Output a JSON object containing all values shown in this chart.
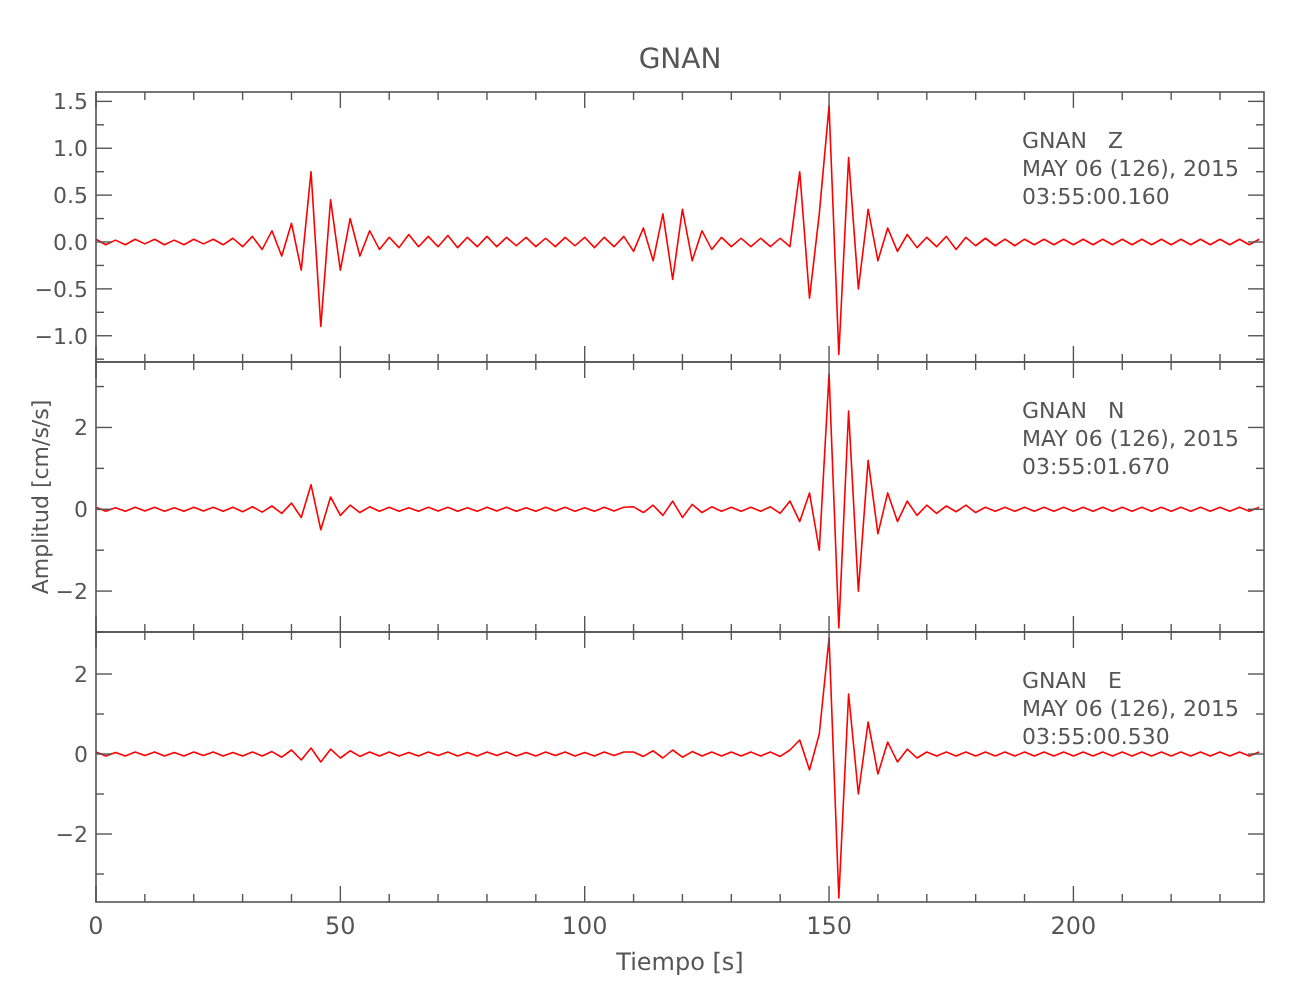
{
  "chart_data": [
    {
      "type": "line",
      "title": "GNAN",
      "xlim": [
        0,
        239
      ],
      "ylim": [
        -1.28,
        1.6
      ],
      "tick_labels": "y",
      "xticks": [
        {
          "value": 0,
          "label": null
        },
        {
          "value": 10,
          "label": null
        },
        {
          "value": 20,
          "label": null
        },
        {
          "value": 30,
          "label": null
        },
        {
          "value": 40,
          "label": null
        },
        {
          "value": 50,
          "label": null
        },
        {
          "value": 60,
          "label": null
        },
        {
          "value": 70,
          "label": null
        },
        {
          "value": 80,
          "label": null
        },
        {
          "value": 90,
          "label": null
        },
        {
          "value": 100,
          "label": null
        },
        {
          "value": 110,
          "label": null
        },
        {
          "value": 120,
          "label": null
        },
        {
          "value": 130,
          "label": null
        },
        {
          "value": 140,
          "label": null
        },
        {
          "value": 150,
          "label": null
        },
        {
          "value": 160,
          "label": null
        },
        {
          "value": 170,
          "label": null
        },
        {
          "value": 180,
          "label": null
        },
        {
          "value": 190,
          "label": null
        },
        {
          "value": 200,
          "label": null
        },
        {
          "value": 210,
          "label": null
        },
        {
          "value": 220,
          "label": null
        },
        {
          "value": 230,
          "label": null
        }
      ],
      "yticks": [
        {
          "value": -1.25,
          "label": null
        },
        {
          "value": -1,
          "label": "−1.0"
        },
        {
          "value": -0.75,
          "label": null
        },
        {
          "value": -0.5,
          "label": "−0.5"
        },
        {
          "value": -0.25,
          "label": null
        },
        {
          "value": 0,
          "label": "0.0"
        },
        {
          "value": 0.25,
          "label": null
        },
        {
          "value": 0.5,
          "label": "0.5"
        },
        {
          "value": 0.75,
          "label": null
        },
        {
          "value": 1,
          "label": "1.0"
        },
        {
          "value": 1.25,
          "label": null
        },
        {
          "value": 1.5,
          "label": "1.5"
        }
      ],
      "annotations": [
        "GNAN   Z",
        "MAY 06 (126), 2015",
        "03:55:00.160"
      ],
      "series": [
        {
          "color": "#ff0000",
          "x": [
            0,
            2,
            4,
            6,
            8,
            10,
            12,
            14,
            16,
            18,
            20,
            22,
            24,
            26,
            28,
            30,
            32,
            34,
            36,
            38,
            40,
            42,
            44,
            46,
            48,
            50,
            52,
            54,
            56,
            58,
            60,
            62,
            64,
            66,
            68,
            70,
            72,
            74,
            76,
            78,
            80,
            82,
            84,
            86,
            88,
            90,
            92,
            94,
            96,
            98,
            100,
            102,
            104,
            106,
            108,
            110,
            112,
            114,
            116,
            118,
            120,
            122,
            124,
            126,
            128,
            130,
            132,
            134,
            136,
            138,
            140,
            142,
            144,
            146,
            148,
            150,
            152,
            154,
            156,
            158,
            160,
            162,
            164,
            166,
            168,
            170,
            172,
            174,
            176,
            178,
            180,
            182,
            184,
            186,
            188,
            190,
            192,
            194,
            196,
            198,
            200,
            202,
            204,
            206,
            208,
            210,
            212,
            214,
            216,
            218,
            220,
            222,
            224,
            226,
            228,
            230,
            232,
            234,
            236,
            238
          ],
          "values": [
            0.03,
            -0.03,
            0.02,
            -0.03,
            0.03,
            -0.02,
            0.03,
            -0.03,
            0.02,
            -0.03,
            0.03,
            -0.02,
            0.03,
            -0.03,
            0.04,
            -0.05,
            0.06,
            -0.08,
            0.12,
            -0.15,
            0.2,
            -0.3,
            0.75,
            -0.9,
            0.45,
            -0.3,
            0.25,
            -0.15,
            0.12,
            -0.08,
            0.05,
            -0.06,
            0.08,
            -0.05,
            0.06,
            -0.05,
            0.07,
            -0.06,
            0.05,
            -0.05,
            0.06,
            -0.05,
            0.05,
            -0.04,
            0.05,
            -0.05,
            0.04,
            -0.05,
            0.05,
            -0.04,
            0.05,
            -0.06,
            0.05,
            -0.05,
            0.06,
            -0.1,
            0.15,
            -0.2,
            0.3,
            -0.4,
            0.35,
            -0.2,
            0.12,
            -0.08,
            0.05,
            -0.05,
            0.04,
            -0.05,
            0.04,
            -0.05,
            0.04,
            -0.05,
            0.75,
            -0.6,
            0.3,
            1.45,
            -1.2,
            0.9,
            -0.5,
            0.35,
            -0.2,
            0.15,
            -0.1,
            0.08,
            -0.06,
            0.05,
            -0.05,
            0.06,
            -0.08,
            0.05,
            -0.04,
            0.04,
            -0.04,
            0.03,
            -0.04,
            0.03,
            -0.03,
            0.03,
            -0.03,
            0.03,
            -0.03,
            0.03,
            -0.03,
            0.03,
            -0.03,
            0.03,
            -0.03,
            0.03,
            -0.03,
            0.03,
            -0.03,
            0.03,
            -0.03,
            0.03,
            -0.03,
            0.03,
            -0.03,
            0.03,
            -0.03,
            0.03
          ]
        }
      ]
    },
    {
      "type": "line",
      "ylabel": "Amplitud [cm/s/s]",
      "xlim": [
        0,
        239
      ],
      "ylim": [
        -3,
        3.6
      ],
      "tick_labels": "y",
      "xticks": [
        {
          "value": 0,
          "label": null
        },
        {
          "value": 10,
          "label": null
        },
        {
          "value": 20,
          "label": null
        },
        {
          "value": 30,
          "label": null
        },
        {
          "value": 40,
          "label": null
        },
        {
          "value": 50,
          "label": null
        },
        {
          "value": 60,
          "label": null
        },
        {
          "value": 70,
          "label": null
        },
        {
          "value": 80,
          "label": null
        },
        {
          "value": 90,
          "label": null
        },
        {
          "value": 100,
          "label": null
        },
        {
          "value": 110,
          "label": null
        },
        {
          "value": 120,
          "label": null
        },
        {
          "value": 130,
          "label": null
        },
        {
          "value": 140,
          "label": null
        },
        {
          "value": 150,
          "label": null
        },
        {
          "value": 160,
          "label": null
        },
        {
          "value": 170,
          "label": null
        },
        {
          "value": 180,
          "label": null
        },
        {
          "value": 190,
          "label": null
        },
        {
          "value": 200,
          "label": null
        },
        {
          "value": 210,
          "label": null
        },
        {
          "value": 220,
          "label": null
        },
        {
          "value": 230,
          "label": null
        }
      ],
      "yticks": [
        {
          "value": -3,
          "label": null
        },
        {
          "value": -2,
          "label": "−2"
        },
        {
          "value": -1,
          "label": null
        },
        {
          "value": 0,
          "label": "0"
        },
        {
          "value": 1,
          "label": null
        },
        {
          "value": 2,
          "label": "2"
        },
        {
          "value": 3,
          "label": null
        }
      ],
      "annotations": [
        "GNAN   N",
        "MAY 06 (126), 2015",
        "03:55:01.670"
      ],
      "series": [
        {
          "color": "#ff0000",
          "x": [
            0,
            2,
            4,
            6,
            8,
            10,
            12,
            14,
            16,
            18,
            20,
            22,
            24,
            26,
            28,
            30,
            32,
            34,
            36,
            38,
            40,
            42,
            44,
            46,
            48,
            50,
            52,
            54,
            56,
            58,
            60,
            62,
            64,
            66,
            68,
            70,
            72,
            74,
            76,
            78,
            80,
            82,
            84,
            86,
            88,
            90,
            92,
            94,
            96,
            98,
            100,
            102,
            104,
            106,
            108,
            110,
            112,
            114,
            116,
            118,
            120,
            122,
            124,
            126,
            128,
            130,
            132,
            134,
            136,
            138,
            140,
            142,
            144,
            146,
            148,
            150,
            152,
            154,
            156,
            158,
            160,
            162,
            164,
            166,
            168,
            170,
            172,
            174,
            176,
            178,
            180,
            182,
            184,
            186,
            188,
            190,
            192,
            194,
            196,
            198,
            200,
            202,
            204,
            206,
            208,
            210,
            212,
            214,
            216,
            218,
            220,
            222,
            224,
            226,
            228,
            230,
            232,
            234,
            236,
            238
          ],
          "values": [
            0.05,
            -0.05,
            0.04,
            -0.05,
            0.05,
            -0.04,
            0.05,
            -0.05,
            0.04,
            -0.05,
            0.05,
            -0.04,
            0.05,
            -0.05,
            0.05,
            -0.06,
            0.06,
            -0.07,
            0.08,
            -0.1,
            0.15,
            -0.2,
            0.6,
            -0.5,
            0.3,
            -0.15,
            0.1,
            -0.08,
            0.06,
            -0.05,
            0.05,
            -0.05,
            0.04,
            -0.05,
            0.05,
            -0.04,
            0.05,
            -0.05,
            0.04,
            -0.05,
            0.05,
            -0.04,
            0.05,
            -0.05,
            0.04,
            -0.05,
            0.05,
            -0.04,
            0.05,
            -0.05,
            0.04,
            -0.05,
            0.05,
            -0.04,
            0.05,
            0.06,
            -0.08,
            0.1,
            -0.15,
            0.2,
            -0.2,
            0.12,
            -0.08,
            0.06,
            -0.05,
            0.05,
            -0.05,
            0.05,
            -0.05,
            0.06,
            -0.1,
            0.2,
            -0.3,
            0.4,
            -1,
            3.3,
            -2.9,
            2.4,
            -2,
            1.2,
            -0.6,
            0.4,
            -0.3,
            0.2,
            -0.15,
            0.1,
            -0.1,
            0.08,
            -0.06,
            0.1,
            -0.08,
            0.05,
            -0.05,
            0.05,
            -0.05,
            0.05,
            -0.05,
            0.05,
            -0.05,
            0.05,
            -0.05,
            0.05,
            -0.05,
            0.05,
            -0.05,
            0.05,
            -0.05,
            0.05,
            -0.05,
            0.05,
            -0.05,
            0.05,
            -0.05,
            0.05,
            -0.05,
            0.05,
            -0.05,
            0.05,
            -0.05,
            0.05
          ]
        }
      ]
    },
    {
      "type": "line",
      "xlabel": "Tiempo [s]",
      "xlim": [
        0,
        239
      ],
      "ylim": [
        -3.7,
        3.05
      ],
      "xticks": [
        0,
        {
          "value": 10,
          "label": null
        },
        {
          "value": 20,
          "label": null
        },
        {
          "value": 30,
          "label": null
        },
        {
          "value": 40,
          "label": null
        },
        50,
        {
          "value": 60,
          "label": null
        },
        {
          "value": 70,
          "label": null
        },
        {
          "value": 80,
          "label": null
        },
        {
          "value": 90,
          "label": null
        },
        100,
        {
          "value": 110,
          "label": null
        },
        {
          "value": 120,
          "label": null
        },
        {
          "value": 130,
          "label": null
        },
        {
          "value": 140,
          "label": null
        },
        150,
        {
          "value": 160,
          "label": null
        },
        {
          "value": 170,
          "label": null
        },
        {
          "value": 180,
          "label": null
        },
        {
          "value": 190,
          "label": null
        },
        200,
        {
          "value": 210,
          "label": null
        },
        {
          "value": 220,
          "label": null
        },
        {
          "value": 230,
          "label": null
        }
      ],
      "yticks": [
        {
          "value": -3,
          "label": null
        },
        {
          "value": -2,
          "label": "−2"
        },
        {
          "value": -1,
          "label": null
        },
        {
          "value": 0,
          "label": "0"
        },
        {
          "value": 1,
          "label": null
        },
        {
          "value": 2,
          "label": "2"
        }
      ],
      "annotations": [
        "GNAN   E",
        "MAY 06 (126), 2015",
        "03:55:00.530"
      ],
      "series": [
        {
          "color": "#ff0000",
          "x": [
            0,
            2,
            4,
            6,
            8,
            10,
            12,
            14,
            16,
            18,
            20,
            22,
            24,
            26,
            28,
            30,
            32,
            34,
            36,
            38,
            40,
            42,
            44,
            46,
            48,
            50,
            52,
            54,
            56,
            58,
            60,
            62,
            64,
            66,
            68,
            70,
            72,
            74,
            76,
            78,
            80,
            82,
            84,
            86,
            88,
            90,
            92,
            94,
            96,
            98,
            100,
            102,
            104,
            106,
            108,
            110,
            112,
            114,
            116,
            118,
            120,
            122,
            124,
            126,
            128,
            130,
            132,
            134,
            136,
            138,
            140,
            142,
            144,
            146,
            148,
            150,
            152,
            154,
            156,
            158,
            160,
            162,
            164,
            166,
            168,
            170,
            172,
            174,
            176,
            178,
            180,
            182,
            184,
            186,
            188,
            190,
            192,
            194,
            196,
            198,
            200,
            202,
            204,
            206,
            208,
            210,
            212,
            214,
            216,
            218,
            220,
            222,
            224,
            226,
            228,
            230,
            232,
            234,
            236,
            238
          ],
          "values": [
            0.05,
            -0.05,
            0.04,
            -0.05,
            0.05,
            -0.04,
            0.05,
            -0.05,
            0.04,
            -0.05,
            0.05,
            -0.04,
            0.05,
            -0.05,
            0.04,
            -0.05,
            0.05,
            -0.05,
            0.06,
            -0.08,
            0.1,
            -0.15,
            0.15,
            -0.2,
            0.12,
            -0.1,
            0.08,
            -0.06,
            0.05,
            -0.05,
            0.05,
            -0.05,
            0.04,
            -0.05,
            0.05,
            -0.04,
            0.05,
            -0.05,
            0.04,
            -0.05,
            0.05,
            -0.04,
            0.05,
            -0.05,
            0.04,
            -0.05,
            0.05,
            -0.04,
            0.05,
            -0.05,
            0.04,
            -0.05,
            0.05,
            -0.04,
            0.05,
            0.05,
            -0.06,
            0.08,
            -0.1,
            0.1,
            -0.08,
            0.06,
            -0.05,
            0.05,
            -0.05,
            0.05,
            -0.05,
            0.05,
            -0.05,
            0.05,
            -0.06,
            0.1,
            0.35,
            -0.4,
            0.5,
            2.9,
            -3.6,
            1.5,
            -1,
            0.8,
            -0.5,
            0.3,
            -0.2,
            0.12,
            -0.1,
            0.05,
            -0.05,
            0.05,
            -0.05,
            0.05,
            -0.05,
            0.05,
            -0.05,
            0.05,
            -0.05,
            0.05,
            -0.05,
            0.05,
            -0.05,
            0.05,
            -0.05,
            0.05,
            -0.05,
            0.05,
            -0.05,
            0.05,
            -0.05,
            0.05,
            -0.05,
            0.05,
            -0.05,
            0.05,
            -0.05,
            0.05,
            -0.05,
            0.05,
            -0.05,
            0.05,
            -0.05,
            0.05
          ]
        }
      ]
    }
  ]
}
